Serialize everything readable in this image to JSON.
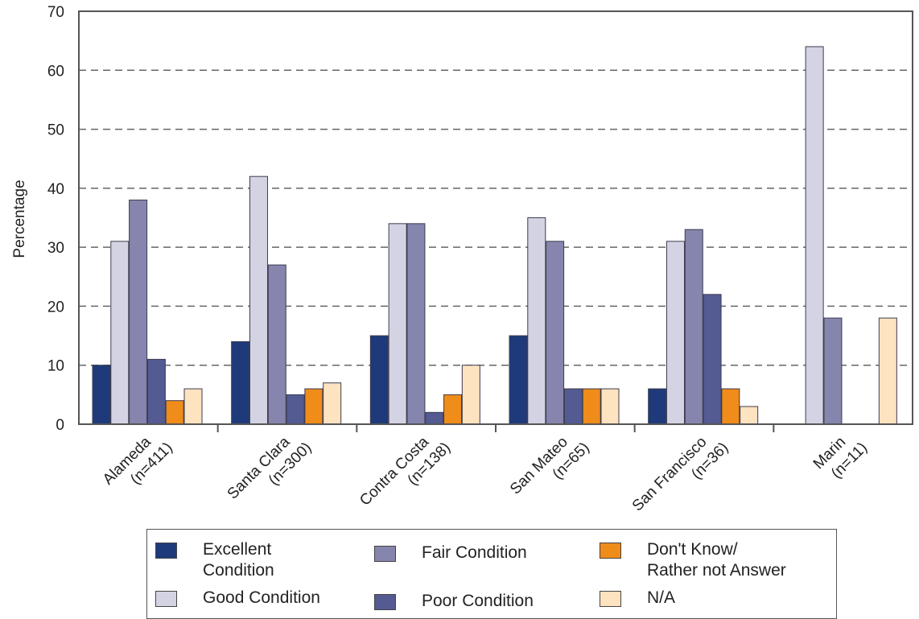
{
  "chart_data": {
    "type": "bar",
    "title": "",
    "xlabel": "",
    "ylabel": "Percentage",
    "ylim": [
      0,
      70
    ],
    "yticks": [
      0,
      10,
      20,
      30,
      40,
      50,
      60,
      70
    ],
    "grid": "horizontal dashed",
    "legend_position": "bottom",
    "categories": [
      [
        "Alameda",
        "(n=411)"
      ],
      [
        "Santa Clara",
        "(n=300)"
      ],
      [
        "Contra Costa",
        "(n=138)"
      ],
      [
        "San Mateo",
        "(n=65)"
      ],
      [
        "San Francisco",
        "(n=36)"
      ],
      [
        "Marin",
        "(n=11)"
      ]
    ],
    "series": [
      {
        "name": "Excellent Condition",
        "color": "#1e3a7a",
        "values": [
          10,
          14,
          15,
          15,
          6,
          0
        ]
      },
      {
        "name": "Good Condition",
        "color": "#d3d3e3",
        "values": [
          31,
          42,
          34,
          35,
          31,
          64
        ]
      },
      {
        "name": "Fair Condition",
        "color": "#8585ad",
        "values": [
          38,
          27,
          34,
          31,
          33,
          18
        ]
      },
      {
        "name": "Poor Condition",
        "color": "#545a92",
        "values": [
          11,
          5,
          2,
          6,
          22,
          0
        ]
      },
      {
        "name": "Don't Know/\nRather not Answer",
        "color": "#ef8c1a",
        "values": [
          4,
          6,
          5,
          6,
          6,
          0
        ]
      },
      {
        "name": "N/A",
        "color": "#fde3c0",
        "values": [
          6,
          7,
          10,
          6,
          3,
          18
        ]
      }
    ]
  }
}
